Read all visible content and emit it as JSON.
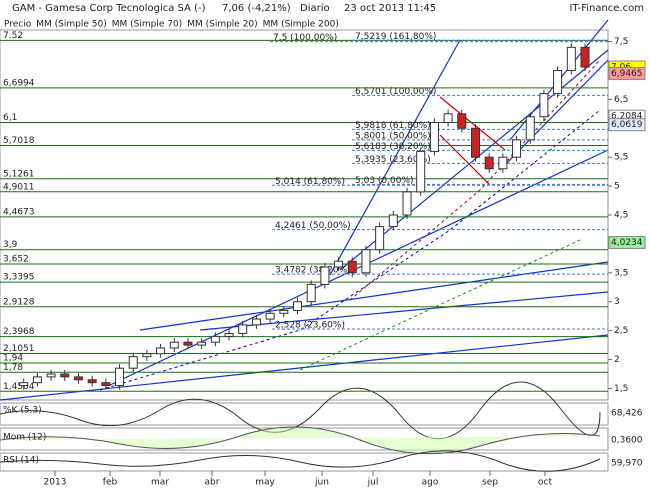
{
  "header": {
    "title": "GAM - Gamesa Corp Tecnologica SA (-)",
    "price": "7,06 (-4,21%)",
    "period": "Diario",
    "date": "23 oct 2013 11:45",
    "brand": "IT-Finance.com"
  },
  "chart_data": {
    "type": "candlestick",
    "legend": [
      {
        "name": "Precio",
        "color": "#333333"
      },
      {
        "name": "MM (Simple 50)",
        "color": "#777777"
      },
      {
        "name": "MM (Simple 70)",
        "color": "#0000cc"
      },
      {
        "name": "MM (Simple 20)",
        "color": "#990033"
      },
      {
        "name": "MM (Simple 200)",
        "color": "#009900"
      }
    ],
    "close": [
      1.55,
      1.6,
      1.7,
      1.75,
      1.7,
      1.65,
      1.6,
      1.55,
      1.85,
      2.05,
      2.1,
      2.2,
      2.3,
      2.25,
      2.3,
      2.4,
      2.45,
      2.6,
      2.7,
      2.8,
      2.85,
      3.0,
      3.3,
      3.6,
      3.7,
      3.5,
      3.9,
      4.3,
      4.5,
      4.9,
      5.6,
      6.1,
      6.25,
      6.0,
      5.5,
      5.3,
      5.5,
      5.8,
      6.2,
      6.6,
      7.0,
      7.4,
      7.06
    ],
    "ylim": [
      1.3,
      7.7
    ],
    "yticks": [
      {
        "value": 7.5,
        "label": "7,5"
      },
      7,
      {
        "value": 6.5,
        "label": "6,5"
      },
      6,
      {
        "value": 5.5,
        "label": "5,5"
      },
      5,
      {
        "value": 4.5,
        "label": "4,5"
      },
      4,
      {
        "value": 3.5,
        "label": "3,5"
      },
      3,
      {
        "value": 2.5,
        "label": "2,5"
      },
      2,
      {
        "value": 1.5,
        "label": "1,5"
      }
    ],
    "months": [
      "2013",
      "feb",
      "mar",
      "abr",
      "may",
      "jun",
      "jul",
      "ago",
      "sep",
      "oct"
    ],
    "levels": [
      7.52,
      {
        "value": 6.6994,
        "label": "6,6994"
      },
      {
        "value": 6.1,
        "label": "6,1"
      },
      {
        "value": 5.7018,
        "label": "5,7018"
      },
      {
        "value": 5.1261,
        "label": "5,1261"
      },
      {
        "value": 4.9011,
        "label": "4,9011"
      },
      {
        "value": 4.4673,
        "label": "4,4673"
      },
      {
        "value": 3.9,
        "label": "3,9"
      },
      {
        "value": 3.652,
        "label": "3,652"
      },
      {
        "value": 3.3395,
        "label": "3,3395"
      },
      {
        "value": 2.9128,
        "label": "2,9128"
      },
      {
        "value": 2.3968,
        "label": "2,3968"
      },
      {
        "value": 2.1051,
        "label": "2,1051"
      },
      {
        "value": 1.94,
        "label": "1,94"
      },
      {
        "value": 1.78,
        "label": "1,78"
      },
      {
        "value": 1.4504,
        "label": "1,4504"
      }
    ],
    "fib": [
      {
        "value": 7.5,
        "label": "7,5 (100,00%)"
      },
      {
        "value": 7.5219,
        "label": "7,5219 (161,80%)"
      },
      {
        "value": 6.5701,
        "label": "6,5701 (100,00%)"
      },
      {
        "value": 5.9818,
        "label": "5,9818 (61,80%)"
      },
      {
        "value": 5.8001,
        "label": "5,8001 (50,00%)"
      },
      {
        "value": 5.6183,
        "label": "5,6183 (38,20%)"
      },
      {
        "value": 5.3935,
        "label": "5,3935 (23,60%)"
      },
      {
        "value": 5.014,
        "label": "5,014 (61,80%)"
      },
      {
        "value": 5.03,
        "label": "5,03 (0,00%)"
      },
      {
        "value": 4.2461,
        "label": "4,2461 (50,00%)"
      },
      {
        "value": 3.4782,
        "label": "3,4782 (38,20%)"
      },
      {
        "value": 2.528,
        "label": "2,528 (23,60%)"
      }
    ],
    "tags": [
      {
        "value": 7.06,
        "label": "7,06",
        "color": "#ffff00"
      },
      {
        "value": 6.9465,
        "label": "6,9465",
        "color": "#ff9999"
      },
      {
        "value": 6.2084,
        "label": "6,2084",
        "color": "#ffffff"
      },
      {
        "value": 6.0619,
        "label": "6,0619",
        "color": "#ddeeff"
      },
      {
        "value": 4.0234,
        "label": "4,0234",
        "color": "#99ee99"
      }
    ],
    "panels": [
      {
        "name": "%K (5,3)",
        "value": "68,426"
      },
      {
        "name": "Mom (12)",
        "value": "0,3600"
      },
      {
        "name": "RSI (14)",
        "value": "59,970"
      }
    ]
  }
}
